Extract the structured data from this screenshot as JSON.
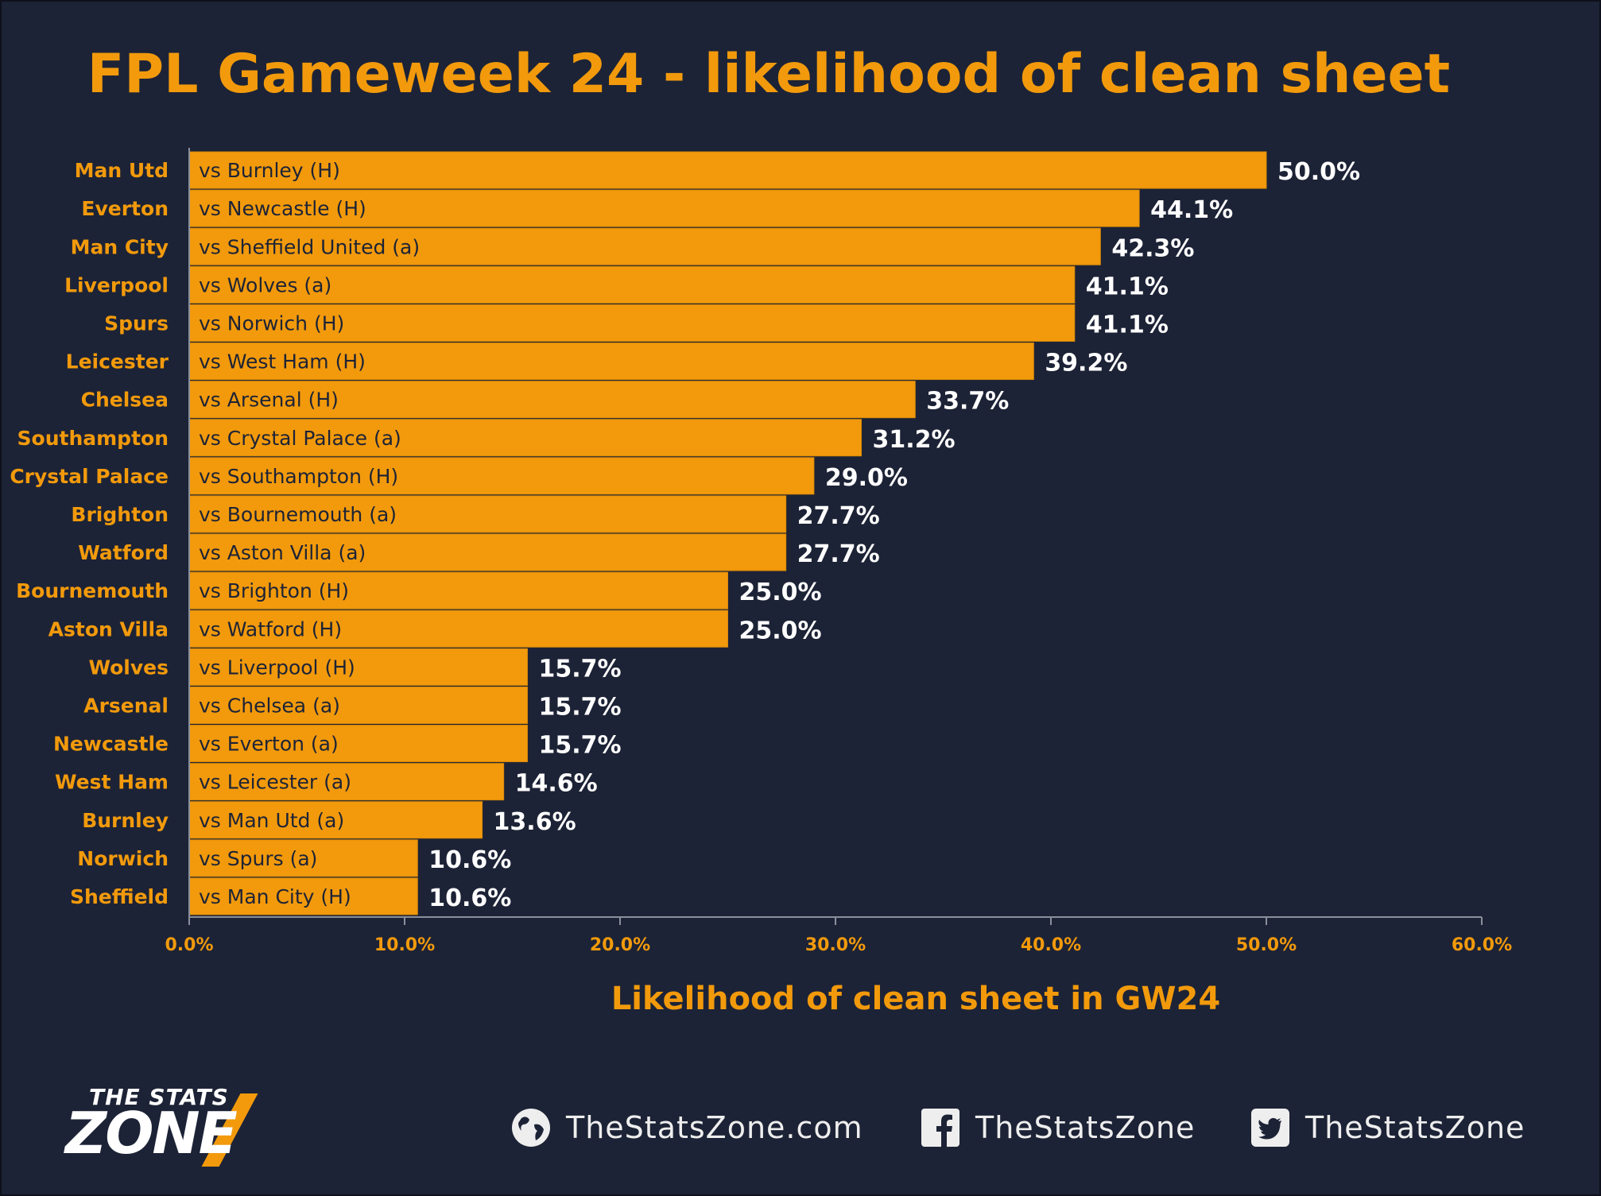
{
  "chart_data": {
    "type": "bar",
    "orientation": "horizontal",
    "title": "FPL Gameweek 24 - likelihood of clean sheet",
    "xlabel": "Likelihood of clean sheet in GW24",
    "xlim": [
      0,
      60
    ],
    "x_ticks": [
      "0.0%",
      "10.0%",
      "20.0%",
      "30.0%",
      "40.0%",
      "50.0%",
      "60.0%"
    ],
    "bar_color": "#f29a0c",
    "categories": [
      "Man Utd",
      "Everton",
      "Man City",
      "Liverpool",
      "Spurs",
      "Leicester",
      "Chelsea",
      "Southampton",
      "Crystal Palace",
      "Brighton",
      "Watford",
      "Bournemouth",
      "Aston Villa",
      "Wolves",
      "Arsenal",
      "Newcastle",
      "West Ham",
      "Burnley",
      "Norwich",
      "Sheffield"
    ],
    "fixtures": [
      "vs Burnley (H)",
      "vs Newcastle (H)",
      "vs Sheffield United (a)",
      "vs Wolves (a)",
      "vs Norwich (H)",
      "vs West Ham (H)",
      "vs Arsenal (H)",
      "vs Crystal Palace (a)",
      "vs Southampton (H)",
      "vs Bournemouth (a)",
      "vs Aston Villa (a)",
      "vs Brighton (H)",
      "vs Watford (H)",
      "vs Liverpool (H)",
      "vs Chelsea (a)",
      "vs Everton (a)",
      "vs Leicester (a)",
      "vs Man Utd (a)",
      "vs Spurs (a)",
      "vs Man City (H)"
    ],
    "values": [
      50.0,
      44.1,
      42.3,
      41.1,
      41.1,
      39.2,
      33.7,
      31.2,
      29.0,
      27.7,
      27.7,
      25.0,
      25.0,
      15.7,
      15.7,
      15.7,
      14.6,
      13.6,
      10.6,
      10.6
    ],
    "value_labels": [
      "50.0%",
      "44.1%",
      "42.3%",
      "41.1%",
      "41.1%",
      "39.2%",
      "33.7%",
      "31.2%",
      "29.0%",
      "27.7%",
      "27.7%",
      "25.0%",
      "25.0%",
      "15.7%",
      "15.7%",
      "15.7%",
      "14.6%",
      "13.6%",
      "10.6%",
      "10.6%"
    ]
  },
  "footer": {
    "logo_top": "THE STATS",
    "logo_bottom": "ZONE",
    "website": "TheStatsZone.com",
    "facebook": "TheStatsZone",
    "twitter": "TheStatsZone",
    "website_icon": "globe-icon",
    "facebook_icon": "facebook-icon",
    "twitter_icon": "twitter-icon"
  }
}
